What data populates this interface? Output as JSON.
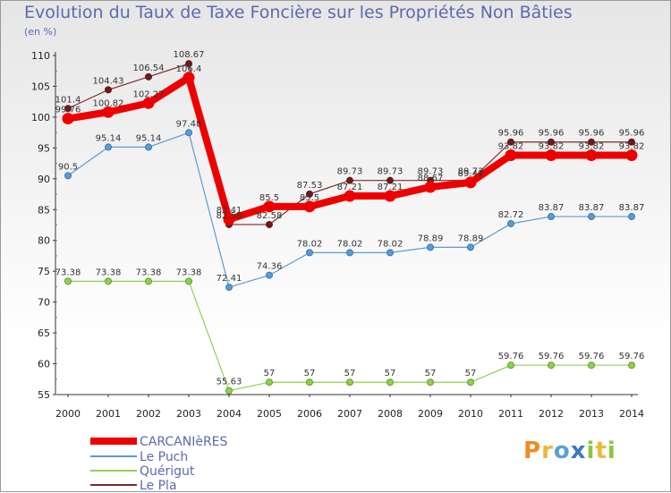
{
  "chart_data": {
    "type": "line",
    "title": "Evolution du Taux de Taxe Foncière sur les Propriétés Non Bâties",
    "ylabel": "(en %)",
    "xlabel": "",
    "ylim": [
      55,
      110
    ],
    "yticks": [
      55,
      60,
      65,
      70,
      75,
      80,
      85,
      90,
      95,
      100,
      105,
      110
    ],
    "categories": [
      "2000",
      "2001",
      "2002",
      "2003",
      "2004",
      "2005",
      "2006",
      "2007",
      "2008",
      "2009",
      "2010",
      "2011",
      "2012",
      "2013",
      "2014"
    ],
    "series": [
      {
        "name": "CARCANIèRES",
        "color": "#ee0000",
        "values": [
          99.76,
          100.82,
          102.27,
          106.4,
          83.41,
          85.5,
          85.5,
          87.21,
          87.21,
          88.67,
          89.41,
          93.82,
          93.82,
          93.82,
          93.82
        ]
      },
      {
        "name": "Le Puch",
        "color": "#5b9bd5",
        "values": [
          90.5,
          95.14,
          95.14,
          97.48,
          72.41,
          74.36,
          78.02,
          78.02,
          78.02,
          78.89,
          78.89,
          82.72,
          83.87,
          83.87,
          83.87
        ]
      },
      {
        "name": "Quérigut",
        "color": "#8fd14f",
        "values": [
          73.38,
          73.38,
          73.38,
          73.38,
          55.63,
          57,
          57,
          57,
          57,
          57,
          57,
          59.76,
          59.76,
          59.76,
          59.76
        ]
      },
      {
        "name": "Le Pla",
        "color": "#7b2a2a",
        "values": [
          101.4,
          104.43,
          106.54,
          108.67,
          82.58,
          82.58,
          87.53,
          89.73,
          89.73,
          89.73,
          89.73,
          95.96,
          95.96,
          95.96,
          95.96
        ]
      }
    ],
    "labels": {
      "CARCANIèRES": [
        "99.76",
        "100.82",
        "102.27",
        "106.4",
        "83.41",
        "85.5",
        "85.5",
        "87.21",
        "87.21",
        "88.67",
        "89.41",
        "93.82",
        "93.82",
        "93.82",
        "93.82"
      ],
      "Le Puch": [
        "90.5",
        "95.14",
        "95.14",
        "97.48",
        "72.41",
        "74.36",
        "78.02",
        "78.02",
        "78.02",
        "78.89",
        "78.89",
        "82.72",
        "83.87",
        "83.87",
        "83.87"
      ],
      "Quérigut": [
        "73.38",
        "73.38",
        "73.38",
        "73.38",
        "55.63",
        "57",
        "57",
        "57",
        "57",
        "57",
        "57",
        "59.76",
        "59.76",
        "59.76",
        "59.76"
      ],
      "Le Pla": [
        "101.4",
        "104.43",
        "106.54",
        "108.67",
        "82.58",
        "82.58",
        "87.53",
        "89.73",
        "89.73",
        "89.73",
        "89.73",
        "95.96",
        "95.96",
        "95.96",
        "95.96"
      ]
    },
    "legend_position": "bottom-left"
  },
  "brand": {
    "logo_text": "Proxiti"
  }
}
